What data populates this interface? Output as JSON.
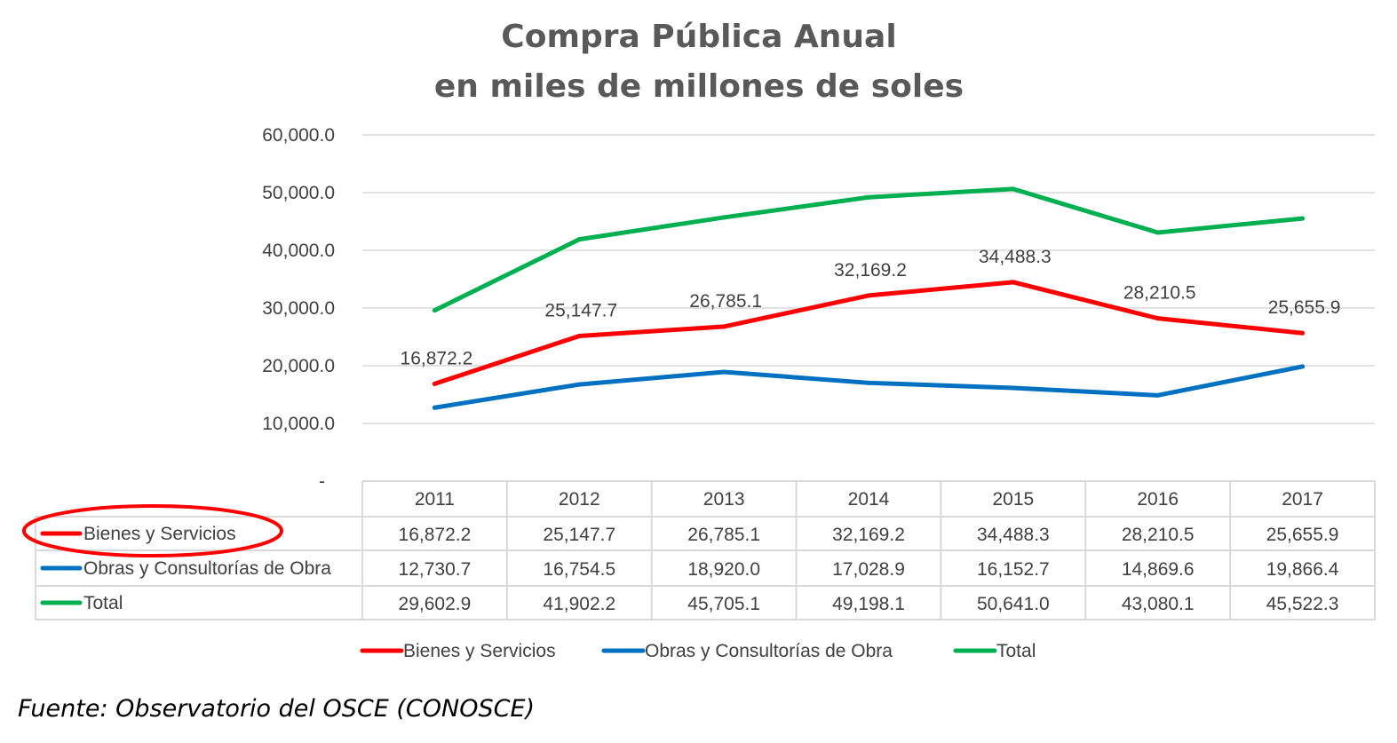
{
  "chart_data": {
    "type": "line",
    "title": [
      "Compra Pública Anual",
      "en miles de millones de soles"
    ],
    "categories": [
      "2011",
      "2012",
      "2013",
      "2014",
      "2015",
      "2016",
      "2017"
    ],
    "ylim": [
      0,
      60000
    ],
    "yticks": [
      0,
      10000,
      20000,
      30000,
      40000,
      50000,
      60000
    ],
    "ytick_labels": [
      "-",
      "10,000.0",
      "20,000.0",
      "30,000.0",
      "40,000.0",
      "50,000.0",
      "60,000.0"
    ],
    "grid": true,
    "legend": "bottom",
    "series": [
      {
        "name": "Bienes y Servicios",
        "color": "#ff0000",
        "values": [
          16872.2,
          25147.7,
          26785.1,
          32169.2,
          34488.3,
          28210.5,
          25655.9
        ],
        "labels": [
          "16,872.2",
          "25,147.7",
          "26,785.1",
          "32,169.2",
          "34,488.3",
          "28,210.5",
          "25,655.9"
        ],
        "data_labels_shown": true,
        "highlighted": true
      },
      {
        "name": "Obras y Consultorías de Obra",
        "color": "#0070c0",
        "values": [
          12730.7,
          16754.5,
          18920.0,
          17028.9,
          16152.7,
          14869.6,
          19866.4
        ],
        "labels": [
          "12,730.7",
          "16,754.5",
          "18,920.0",
          "17,028.9",
          "16,152.7",
          "14,869.6",
          "19,866.4"
        ],
        "data_labels_shown": false
      },
      {
        "name": "Total",
        "color": "#00b050",
        "values": [
          29602.9,
          41902.2,
          45705.1,
          49198.1,
          50641.0,
          43080.1,
          45522.3
        ],
        "labels": [
          "29,602.9",
          "41,902.2",
          "45,705.1",
          "49,198.1",
          "50,641.0",
          "43,080.1",
          "45,522.3"
        ],
        "data_labels_shown": false
      }
    ],
    "data_table": true,
    "highlight_color": "#ff0000"
  },
  "footer": "Fuente: Observatorio del OSCE (CONOSCE)"
}
